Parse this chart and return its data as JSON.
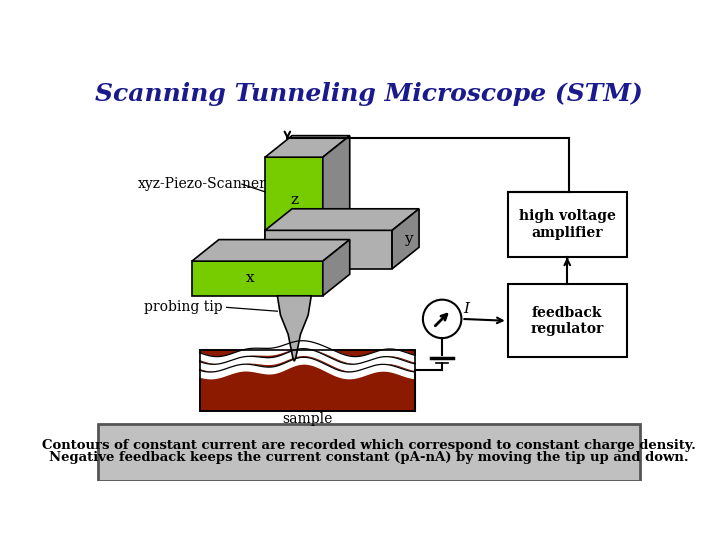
{
  "title": "Scanning Tunneling Microscope (STM)",
  "title_color": "#1a1a8c",
  "title_fontsize": 18,
  "bg_color": "#ffffff",
  "bottom_text_1": "Negative feedback keeps the current constant (pA-nA) by moving the tip up and down.",
  "bottom_text_2": "Contours of constant current are recorded which correspond to constant charge density.",
  "bottom_bg": "#c0c0c0",
  "green_color": "#77cc00",
  "gray_light": "#b0b0b0",
  "gray_dark": "#888888",
  "brown_color": "#8b1a00",
  "label_xyz": "xyz-Piezo-Scanner",
  "label_z": "z",
  "label_y": "y",
  "label_x": "x",
  "label_probing": "probing tip",
  "label_sample": "sample",
  "label_I": "I",
  "label_hva": "high voltage\namplifier",
  "label_fb": "feedback\nregulator"
}
